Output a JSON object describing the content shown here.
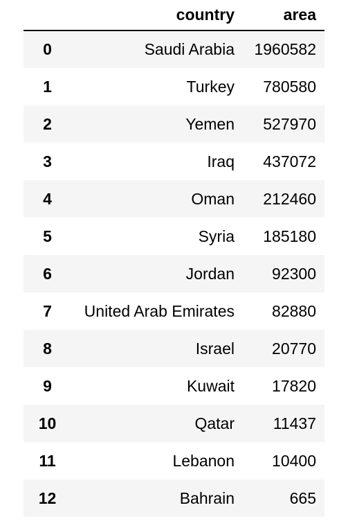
{
  "table": {
    "columns": [
      "country",
      "area"
    ],
    "rows": [
      {
        "index": "0",
        "country": "Saudi Arabia",
        "area": "1960582"
      },
      {
        "index": "1",
        "country": "Turkey",
        "area": "780580"
      },
      {
        "index": "2",
        "country": "Yemen",
        "area": "527970"
      },
      {
        "index": "3",
        "country": "Iraq",
        "area": "437072"
      },
      {
        "index": "4",
        "country": "Oman",
        "area": "212460"
      },
      {
        "index": "5",
        "country": "Syria",
        "area": "185180"
      },
      {
        "index": "6",
        "country": "Jordan",
        "area": "92300"
      },
      {
        "index": "7",
        "country": "United Arab Emirates",
        "area": "82880"
      },
      {
        "index": "8",
        "country": "Israel",
        "area": "20770"
      },
      {
        "index": "9",
        "country": "Kuwait",
        "area": "17820"
      },
      {
        "index": "10",
        "country": "Qatar",
        "area": "11437"
      },
      {
        "index": "11",
        "country": "Lebanon",
        "area": "10400"
      },
      {
        "index": "12",
        "country": "Bahrain",
        "area": "665"
      }
    ]
  },
  "colors": {
    "stripe": "#f5f5f5",
    "background": "#ffffff",
    "text": "#000000"
  }
}
